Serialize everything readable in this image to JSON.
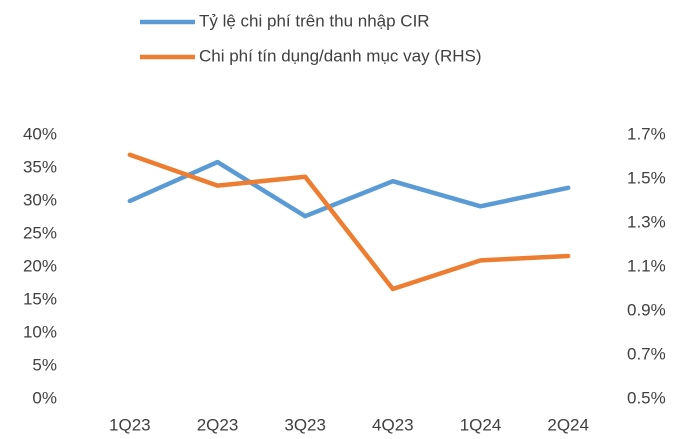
{
  "chart_data": {
    "type": "line",
    "categories": [
      "1Q23",
      "2Q23",
      "3Q23",
      "4Q23",
      "1Q24",
      "2Q24"
    ],
    "series": [
      {
        "name": "Tỷ lệ chi phí trên thu nhập CIR",
        "color": "#5b9bd5",
        "values": [
          30.0,
          35.9,
          27.7,
          33.0,
          29.2,
          32.0
        ]
      },
      {
        "name": "Chi phí tín dụng/danh mục vay (RHS)",
        "color": "#ed7d31",
        "axis": "y2",
        "values": [
          1.61,
          1.47,
          1.51,
          1.0,
          1.13,
          1.15
        ]
      }
    ],
    "ylim": [
      0,
      40
    ],
    "yticks": [
      {
        "value": 0,
        "label": "0%"
      },
      {
        "value": 5,
        "label": "5%"
      },
      {
        "value": 10,
        "label": "10%"
      },
      {
        "value": 15,
        "label": "15%"
      },
      {
        "value": 20,
        "label": "20%"
      },
      {
        "value": 25,
        "label": "25%"
      },
      {
        "value": 30,
        "label": "30%"
      },
      {
        "value": 35,
        "label": "35%"
      },
      {
        "value": 40,
        "label": "40%"
      }
    ],
    "y2lim": [
      0.5,
      1.7
    ],
    "y2ticks": [
      {
        "value": 0.5,
        "label": "0.5%"
      },
      {
        "value": 0.7,
        "label": "0.7%"
      },
      {
        "value": 0.9,
        "label": "0.9%"
      },
      {
        "value": 1.1,
        "label": "1.1%"
      },
      {
        "value": 1.3,
        "label": "1.3%"
      },
      {
        "value": 1.5,
        "label": "1.5%"
      },
      {
        "value": 1.7,
        "label": "1.7%"
      }
    ],
    "grid": false,
    "legend": "top"
  }
}
